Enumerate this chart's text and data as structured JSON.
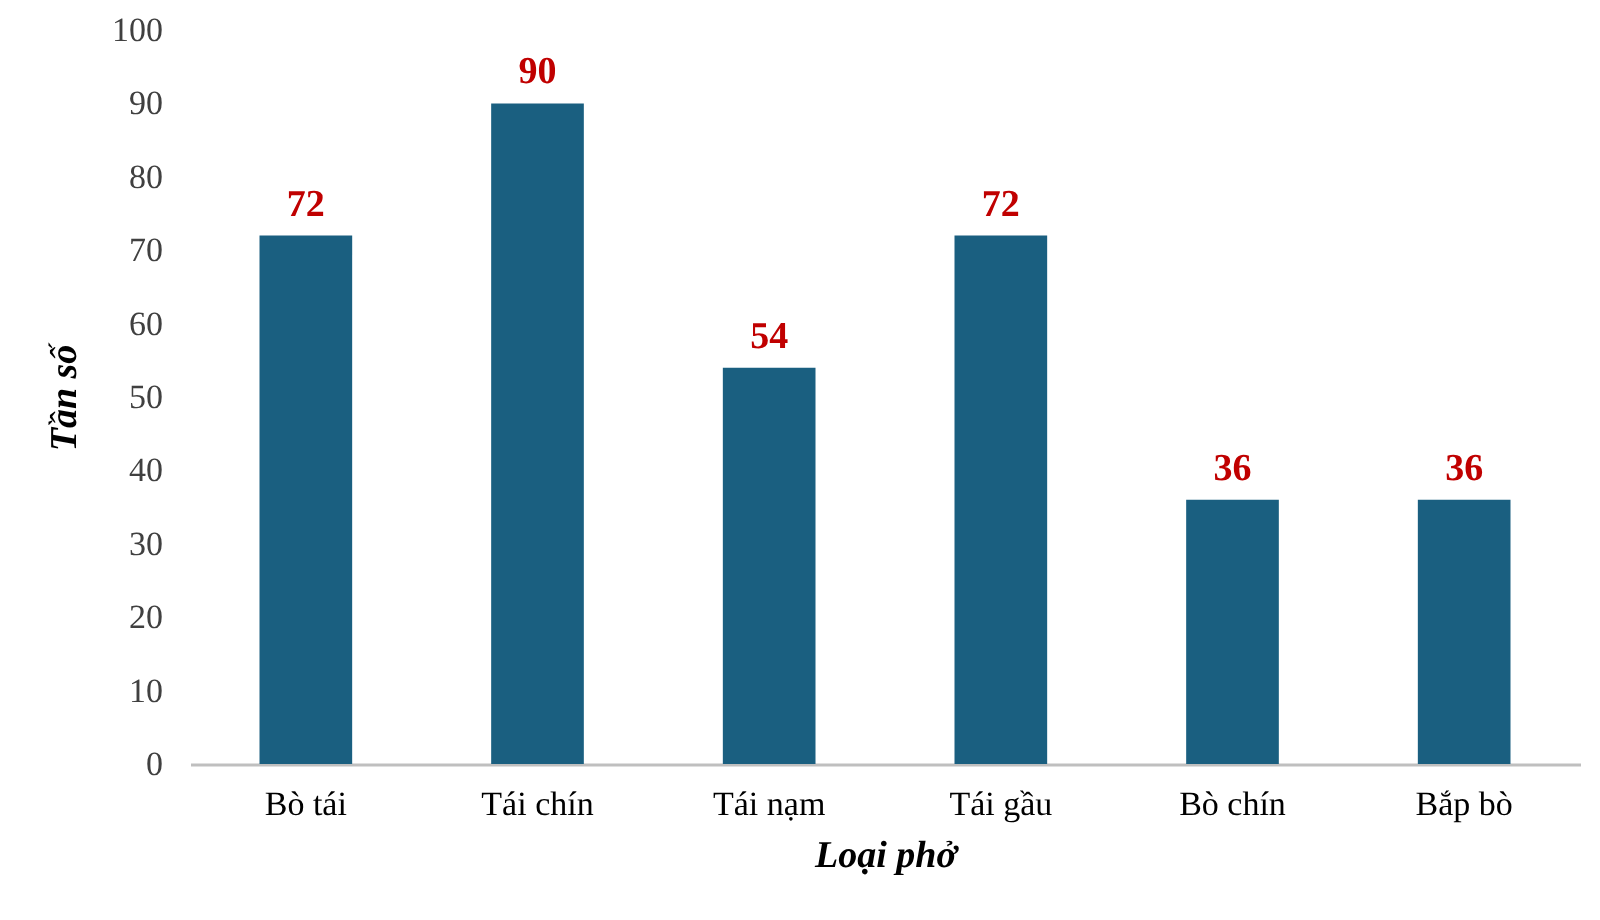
{
  "chart_data": {
    "type": "bar",
    "xlabel": "Loại phở",
    "ylabel": "Tần số",
    "categories": [
      "Bò tái",
      "Tái chín",
      "Tái nạm",
      "Tái gầu",
      "Bò chín",
      "Bắp bò"
    ],
    "values": [
      72,
      90,
      54,
      72,
      36,
      36
    ],
    "color": "#1a5f80",
    "ylim": [
      0,
      100
    ],
    "yticks": [
      0,
      10,
      20,
      30,
      40,
      50,
      60,
      70,
      80,
      90,
      100
    ],
    "data_labels": true
  }
}
